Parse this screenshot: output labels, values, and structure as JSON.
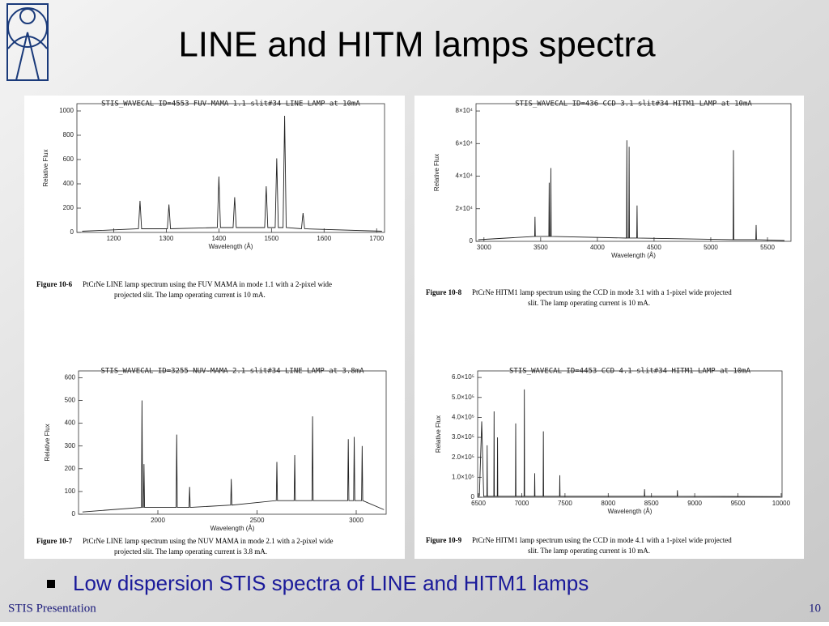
{
  "slide": {
    "title": "LINE and HITM lamps spectra",
    "bullet": "Low dispersion STIS spectra of LINE and HITM1 lamps",
    "footer": "STIS Presentation",
    "page_number": "10"
  },
  "chart_data": [
    {
      "type": "line",
      "title": "STIS_WAVECAL ID=4553 FUV-MAMA 1.1 slit#34 LINE LAMP at 10mA",
      "xlabel": "Wavelength (Å)",
      "ylabel": "Relative Flux",
      "x": [
        1140,
        1247,
        1250,
        1253,
        1302,
        1305,
        1308,
        1397,
        1400,
        1403,
        1427,
        1430,
        1433,
        1487,
        1490,
        1493,
        1507,
        1510,
        1513,
        1522,
        1525,
        1528,
        1557,
        1560,
        1563,
        1710
      ],
      "values": [
        10,
        30,
        260,
        30,
        30,
        230,
        30,
        40,
        460,
        40,
        40,
        290,
        40,
        40,
        380,
        40,
        40,
        610,
        40,
        40,
        960,
        40,
        30,
        160,
        30,
        10
      ],
      "xlim": [
        1130,
        1715
      ],
      "ylim": [
        0,
        1060
      ],
      "xticks": [
        1200,
        1300,
        1400,
        1500,
        1600,
        1700
      ],
      "yticks": [
        0,
        200,
        400,
        600,
        800,
        1000
      ],
      "color": "#222222",
      "caption_label": "Figure 10-6",
      "caption_lines": [
        "PtCrNe LINE lamp spectrum using the FUV MAMA in mode 1.1 with a 2-pixel wide",
        "projected slit.  The lamp operating current is 10 mA."
      ]
    },
    {
      "type": "line",
      "title": "STIS_WAVECAL ID=436 CCD 3.1 slit#34 HITM1 LAMP at 10mA",
      "xlabel": "Wavelength (Å)",
      "ylabel": "Relative Flux",
      "x": [
        2950,
        3447,
        3450,
        3453,
        3572,
        3575,
        3578,
        3587,
        3590,
        3593,
        4257,
        4260,
        4263,
        4277,
        4280,
        4283,
        4347,
        4350,
        4353,
        5197,
        5200,
        5203,
        5397,
        5400,
        5403,
        5650
      ],
      "values": [
        1000,
        3000,
        15000,
        3000,
        3000,
        36000,
        3000,
        3000,
        45000,
        3000,
        2000,
        62000,
        2000,
        2000,
        58000,
        2000,
        2000,
        22000,
        2000,
        1000,
        56000,
        1000,
        1000,
        10000,
        1000,
        500
      ],
      "xlim": [
        2930,
        5707
      ],
      "ylim": [
        0,
        84500
      ],
      "xticks": [
        3000,
        3500,
        4000,
        4500,
        5000,
        5500
      ],
      "yticks": [
        0,
        {
          "value": 20000,
          "label": "2×10⁴"
        },
        {
          "value": 40000,
          "label": "4×10⁴"
        },
        {
          "value": 60000,
          "label": "6×10⁴"
        },
        {
          "value": 80000,
          "label": "8×10⁴"
        }
      ],
      "color": "#222222",
      "caption_label": "Figure 10-8",
      "caption_lines": [
        "PtCrNe HITM1 lamp spectrum using the CCD in mode 3.1 with a 1-pixel wide projected",
        "slit.  The lamp operating current is  10 mA."
      ]
    },
    {
      "type": "line",
      "title": "STIS_WAVECAL ID=3255 NUV-MAMA 2.1 slit#34 LINE LAMP at 3.8mA",
      "xlabel": "Wavelength (Å)",
      "ylabel": "Relative Flux",
      "x": [
        1620,
        1917,
        1920,
        1923,
        1927,
        1930,
        1933,
        2092,
        2095,
        2098,
        2157,
        2160,
        2163,
        2367,
        2370,
        2373,
        2597,
        2600,
        2603,
        2687,
        2690,
        2693,
        2777,
        2780,
        2783,
        2957,
        2960,
        2963,
        2987,
        2990,
        2993,
        3027,
        3030,
        3033,
        3140
      ],
      "values": [
        10,
        30,
        500,
        30,
        30,
        220,
        30,
        30,
        350,
        30,
        30,
        120,
        30,
        40,
        155,
        40,
        60,
        230,
        60,
        60,
        260,
        60,
        60,
        430,
        60,
        60,
        330,
        60,
        60,
        340,
        60,
        60,
        300,
        60,
        20
      ],
      "xlim": [
        1600,
        3151
      ],
      "ylim": [
        0,
        630
      ],
      "xticks": [
        2000,
        2500,
        3000
      ],
      "yticks": [
        0,
        100,
        200,
        300,
        400,
        500,
        600
      ],
      "color": "#222222",
      "caption_label": "Figure 10-7",
      "caption_lines": [
        "PtCrNe LINE lamp spectrum using the NUV MAMA in mode 2.1 with a 2-pixel wide",
        "projected slit.   The lamp operating current is  3.8 mA."
      ]
    },
    {
      "type": "line",
      "title": "STIS_WAVECAL ID=4453 CCD 4.1 slit#34 HITM1 LAMP at 10mA",
      "xlabel": "Wavelength (Å)",
      "ylabel": "Relative Flux",
      "x": [
        6510,
        6537,
        6560,
        6597,
        6600,
        6603,
        6677,
        6680,
        6683,
        6717,
        6720,
        6723,
        6927,
        6930,
        6933,
        7027,
        7030,
        7033,
        7147,
        7150,
        7153,
        7247,
        7250,
        7253,
        7437,
        7440,
        7443,
        8417,
        8420,
        8423,
        8797,
        8800,
        8803,
        9990
      ],
      "values": [
        5000,
        380000,
        5000,
        5000,
        260000,
        5000,
        5000,
        430000,
        5000,
        5000,
        300000,
        5000,
        5000,
        370000,
        5000,
        5000,
        540000,
        5000,
        5000,
        120000,
        5000,
        5000,
        330000,
        5000,
        5000,
        110000,
        5000,
        5000,
        40000,
        5000,
        5000,
        35000,
        5000,
        3000
      ],
      "xlim": [
        6490,
        10010
      ],
      "ylim": [
        0,
        633000
      ],
      "xticks": [
        6500,
        7000,
        7500,
        8000,
        8500,
        9000,
        9500,
        10000
      ],
      "yticks": [
        0,
        {
          "value": 100000,
          "label": "1.0×10⁵"
        },
        {
          "value": 200000,
          "label": "2.0×10⁵"
        },
        {
          "value": 300000,
          "label": "3.0×10⁵"
        },
        {
          "value": 400000,
          "label": "4.0×10⁵"
        },
        {
          "value": 500000,
          "label": "5.0×10⁵"
        },
        {
          "value": 600000,
          "label": "6.0×10⁵"
        }
      ],
      "color": "#222222",
      "caption_label": "Figure 10-9",
      "caption_lines": [
        "PtCrNe HITM1 lamp spectrum using the CCD in mode 4.1 with a 1-pixel wide projected",
        "slit.  The lamp operating current is  10 mA."
      ]
    }
  ]
}
